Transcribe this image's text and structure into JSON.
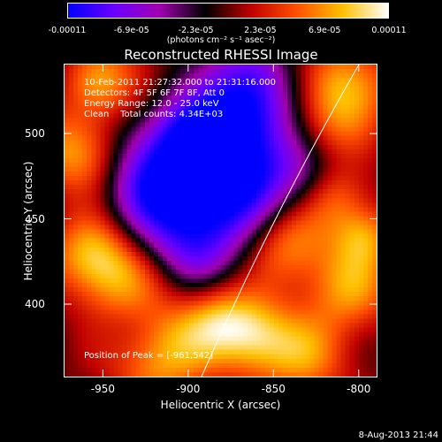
{
  "colorbar": {
    "ticks": [
      "-0.00011",
      "-6.9e-05",
      "-2.3e-05",
      "2.3e-05",
      "6.9e-05",
      "0.00011"
    ],
    "units": "(photons cm⁻² s⁻¹ asec⁻²)",
    "colormap": [
      "#0000ff",
      "#6a00ff",
      "#a000b0",
      "#000000",
      "#c00000",
      "#ff5000",
      "#ffc000",
      "#ffffff"
    ]
  },
  "chart_data": {
    "type": "heatmap",
    "title": "Reconstructed RHESSI Image",
    "xlabel": "Heliocentric X (arcsec)",
    "ylabel": "Heliocentric Y (arcsec)",
    "xlim": [
      -973,
      -789
    ],
    "ylim": [
      357,
      541
    ],
    "x_ticks": [
      "-950",
      "-900",
      "-850",
      "-800"
    ],
    "y_ticks": [
      "400",
      "450",
      "500"
    ],
    "x_tick_values": [
      -950,
      -900,
      -850,
      -800
    ],
    "y_tick_values": [
      400,
      450,
      500
    ],
    "value_range": [
      -0.00011,
      0.00011
    ],
    "info_lines": [
      "10-Feb-2011 21:27:32.000 to 21:31:16.000",
      "Detectors: 4F 5F 6F 7F 8F, Att 0",
      "Energy Range: 12.0 - 25.0 keV",
      "Clean    Total counts: 4.34E+03"
    ],
    "peak_label": "Position of Peak = [-961,542]",
    "peak_position": [
      -961,
      542
    ],
    "limb_color": "#ffffff"
  },
  "footer": {
    "timestamp": "8-Aug-2013 21:44"
  }
}
